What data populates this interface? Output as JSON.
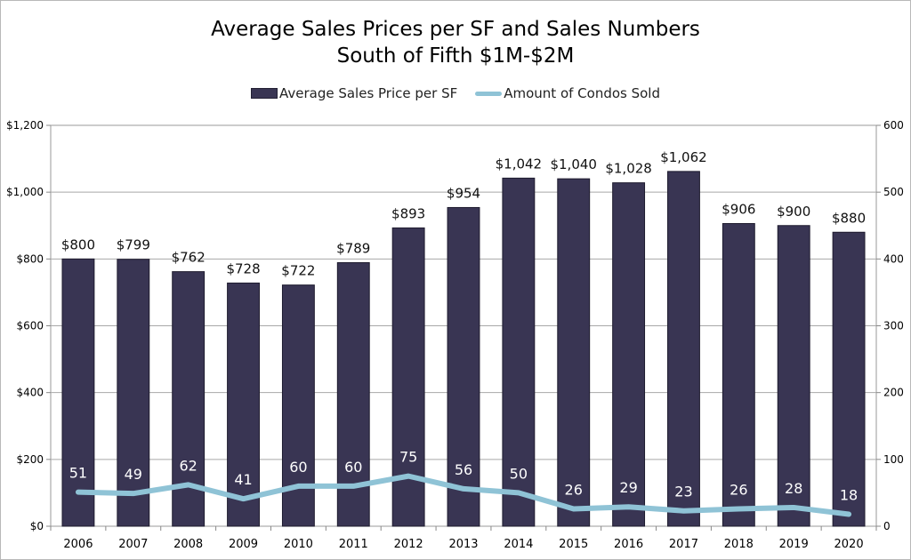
{
  "chart_data": {
    "type": "bar",
    "title": "Average Sales Prices per SF and Sales Numbers",
    "subtitle": "South of Fifth $1M-$2M",
    "legend_placement": "top-center",
    "grid": true,
    "categories": [
      "2006",
      "2007",
      "2008",
      "2009",
      "2010",
      "2011",
      "2012",
      "2013",
      "2014",
      "2015",
      "2016",
      "2017",
      "2018",
      "2019",
      "2020"
    ],
    "series": [
      {
        "name": "Average Sales Price per SF",
        "type": "bar",
        "axis": "left",
        "color": "#393553",
        "values": [
          800,
          799,
          762,
          728,
          722,
          789,
          893,
          954,
          1042,
          1040,
          1028,
          1062,
          906,
          900,
          880
        ],
        "labels": [
          "$800",
          "$799",
          "$762",
          "$728",
          "$722",
          "$789",
          "$893",
          "$954",
          "$1,042",
          "$1,040",
          "$1,028",
          "$1,062",
          "$906",
          "$900",
          "$880"
        ]
      },
      {
        "name": "Amount of Condos Sold",
        "type": "line",
        "axis": "right",
        "color": "#8fc3d6",
        "values": [
          51,
          49,
          62,
          41,
          60,
          60,
          75,
          56,
          50,
          26,
          29,
          23,
          26,
          28,
          18
        ],
        "labels": [
          "51",
          "49",
          "62",
          "41",
          "60",
          "60",
          "75",
          "56",
          "50",
          "26",
          "29",
          "23",
          "26",
          "28",
          "18"
        ]
      }
    ],
    "left_axis": {
      "ylim": [
        0,
        1200
      ],
      "ticks": [
        0,
        200,
        400,
        600,
        800,
        1000,
        1200
      ],
      "tick_labels": [
        "$0",
        "$200",
        "$400",
        "$600",
        "$800",
        "$1,000",
        "$1,200"
      ]
    },
    "right_axis": {
      "ylim": [
        0,
        600
      ],
      "ticks": [
        0,
        100,
        200,
        300,
        400,
        500,
        600
      ],
      "tick_labels": [
        "0",
        "100",
        "200",
        "300",
        "400",
        "500",
        "600"
      ]
    }
  }
}
